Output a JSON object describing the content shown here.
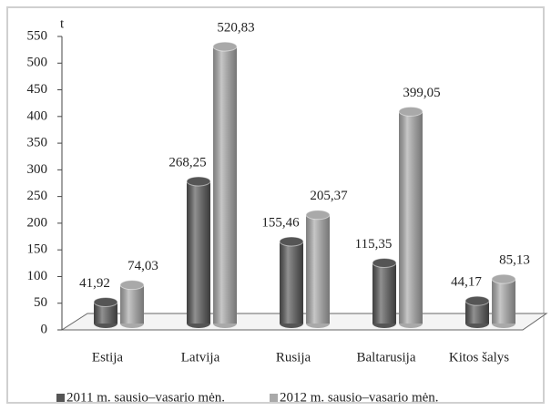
{
  "chart_data": {
    "type": "bar",
    "y_label": "t",
    "categories": [
      "Estija",
      "Latvija",
      "Rusija",
      "Baltarusija",
      "Kitos šalys"
    ],
    "series": [
      {
        "name": "2011 m. sausio–vasario mėn.",
        "color": "#555555",
        "values": [
          41.92,
          268.25,
          155.46,
          115.35,
          44.17
        ],
        "value_labels": [
          "41,92",
          "268,25",
          "155,46",
          "115,35",
          "44,17"
        ]
      },
      {
        "name": "2012 m. sausio–vasario mėn.",
        "color": "#a9a9a9",
        "values": [
          74.03,
          520.83,
          205.37,
          399.05,
          85.13
        ],
        "value_labels": [
          "74,03",
          "520,83",
          "205,37",
          "399,05",
          "85,13"
        ]
      }
    ],
    "ylim": [
      0,
      550
    ],
    "yticks": [
      0,
      50,
      100,
      150,
      200,
      250,
      300,
      350,
      400,
      450,
      500,
      550
    ],
    "legend": "bottom"
  }
}
